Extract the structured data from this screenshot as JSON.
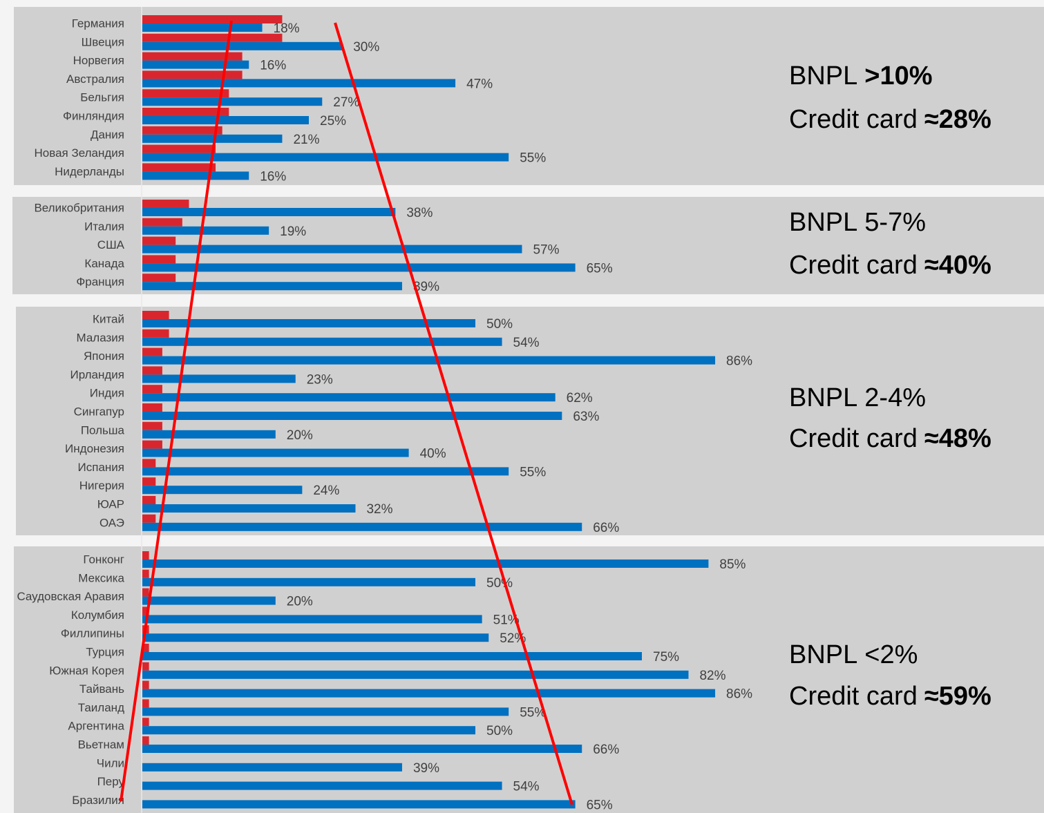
{
  "chart_data": [
    {
      "type": "bar",
      "categories": [
        "Германия",
        "Швеция",
        "Норвегия",
        "Австралия",
        "Бельгия",
        "Финляндия",
        "Дания",
        "Новая Зеландия",
        "Нидерланды"
      ],
      "series": [
        {
          "color": "#d9262e",
          "values": [
            21,
            21,
            15,
            15,
            13,
            13,
            12,
            11,
            11
          ]
        },
        {
          "color": "#0070c0",
          "values": [
            18,
            30,
            16,
            47,
            27,
            25,
            21,
            55,
            16
          ],
          "value_labels": [
            "18%",
            "30%",
            "16%",
            "47%",
            "27%",
            "25%",
            "21%",
            "55%",
            "16%"
          ]
        }
      ],
      "xlim": [
        0,
        100
      ],
      "annotations": [
        {
          "label": "BNPL",
          "value": ">10%",
          "bold": true
        },
        {
          "label": "Credit card",
          "value": "≈28%",
          "bold": true
        }
      ]
    },
    {
      "type": "bar",
      "categories": [
        "Великобритания",
        "Италия",
        "США",
        "Канада",
        "Франция"
      ],
      "series": [
        {
          "color": "#d9262e",
          "values": [
            7,
            6,
            5,
            5,
            5
          ]
        },
        {
          "color": "#0070c0",
          "values": [
            38,
            19,
            57,
            65,
            39
          ],
          "value_labels": [
            "38%",
            "19%",
            "57%",
            "65%",
            "39%"
          ]
        }
      ],
      "xlim": [
        0,
        100
      ],
      "annotations": [
        {
          "label": "BNPL",
          "value": "5-7%",
          "bold": false
        },
        {
          "label": "Credit card",
          "value": "≈40%",
          "bold": true
        }
      ]
    },
    {
      "type": "bar",
      "categories": [
        "Китай",
        "Малазия",
        "Япония",
        "Ирландия",
        "Индия",
        "Сингапур",
        "Польша",
        "Индонезия",
        "Испания",
        "Нигерия",
        "ЮАР",
        "ОАЭ"
      ],
      "series": [
        {
          "color": "#d9262e",
          "values": [
            4,
            4,
            3,
            3,
            3,
            3,
            3,
            3,
            2,
            2,
            2,
            2
          ]
        },
        {
          "color": "#0070c0",
          "values": [
            50,
            54,
            86,
            23,
            62,
            63,
            20,
            40,
            55,
            24,
            32,
            66
          ],
          "value_labels": [
            "50%",
            "54%",
            "86%",
            "23%",
            "62%",
            "63%",
            "20%",
            "40%",
            "55%",
            "24%",
            "32%",
            "66%"
          ]
        }
      ],
      "xlim": [
        0,
        100
      ],
      "annotations": [
        {
          "label": "BNPL",
          "value": "2-4%",
          "bold": false
        },
        {
          "label": "Credit card",
          "value": "≈48%",
          "bold": true
        }
      ]
    },
    {
      "type": "bar",
      "categories": [
        "Гонконг",
        "Мексика",
        "Саудовская Аравия",
        "Колумбия",
        "Филлипины",
        "Турция",
        "Южная Корея",
        "Тайвань",
        "Таиланд",
        "Аргентина",
        "Вьетнам",
        "Чили",
        "Перу",
        "Бразилия"
      ],
      "series": [
        {
          "color": "#d9262e",
          "values": [
            1,
            1,
            1,
            1,
            1,
            1,
            1,
            1,
            1,
            1,
            1,
            0,
            0,
            0
          ]
        },
        {
          "color": "#0070c0",
          "values": [
            85,
            50,
            20,
            51,
            52,
            75,
            82,
            86,
            55,
            50,
            66,
            39,
            54,
            65
          ],
          "value_labels": [
            "85%",
            "50%",
            "20%",
            "51%",
            "52%",
            "75%",
            "82%",
            "86%",
            "55%",
            "50%",
            "66%",
            "39%",
            "54%",
            "65%"
          ]
        }
      ],
      "xlim": [
        0,
        100
      ],
      "annotations": [
        {
          "label": "BNPL",
          "value": "<2%",
          "bold": false
        },
        {
          "label": "Credit card",
          "value": "≈59%",
          "bold": true
        }
      ]
    }
  ]
}
